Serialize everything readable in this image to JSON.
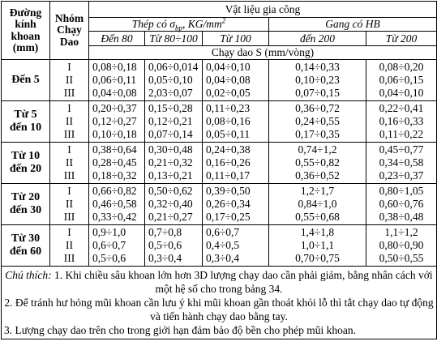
{
  "header": {
    "diameter": [
      "Đường",
      "kính",
      "khoan",
      "(mm)"
    ],
    "feed_group": [
      "Nhóm",
      "Chạy",
      "Dao"
    ],
    "material": "Vật liệu gia công",
    "steel": {
      "prefix": "Thép có σ",
      "sub": "bp",
      "unit": ", KG/mm",
      "sup": "2"
    },
    "cast_iron": "Gang có HB",
    "columns": [
      "Đến 80",
      "Từ 80÷100",
      "Từ 100",
      "đến 200",
      "Từ 200"
    ],
    "unit": "Chạy dao S (mm/vòng)"
  },
  "groups": [
    {
      "diameter": [
        "Đến 5"
      ],
      "feed_groups": [
        "I",
        "II",
        "III"
      ],
      "rows": [
        [
          "0,08÷0,18",
          "0,06÷0,014",
          "0,04÷0,10",
          "0,14÷0,33",
          "0,08÷0,20"
        ],
        [
          "0,06÷0,11",
          "0,05÷0,10",
          "0,04÷0,08",
          "0,10÷0,23",
          "0,06÷0,15"
        ],
        [
          "0,04÷0,08",
          "2,03÷0,07",
          "0,02÷0,05",
          "0,07÷0,15",
          "0,04÷0,10"
        ]
      ]
    },
    {
      "diameter": [
        "Từ 5",
        "đến 10"
      ],
      "feed_groups": [
        "I",
        "II",
        "III"
      ],
      "rows": [
        [
          "0,20÷0,37",
          "0,15÷0,28",
          "0,11÷0,23",
          "0,36÷0,72",
          "0,22÷0,41"
        ],
        [
          "0,12÷0,27",
          "0,12÷0,21",
          "0,08÷0,16",
          "0,24÷0,55",
          "0,16÷0,33"
        ],
        [
          "0,10÷0,18",
          "0,07÷0,14",
          "0,05÷0,11",
          "0,17÷0,35",
          "0,11÷0,22"
        ]
      ]
    },
    {
      "diameter": [
        "Từ 10",
        "đến 20"
      ],
      "feed_groups": [
        "I",
        "II",
        "III"
      ],
      "rows": [
        [
          "0,38÷0,64",
          "0,30÷0,48",
          "0,24÷0,38",
          "0,74÷1,2",
          "0,45÷0,77"
        ],
        [
          "0,28÷0,45",
          "0,21÷0,32",
          "0,16÷0,26",
          "0,55÷0,82",
          "0,34÷0,58"
        ],
        [
          "0,18÷0,32",
          "0,13÷0,21",
          "0,11÷0,17",
          "0,36÷0,52",
          "0,23÷0,37"
        ]
      ]
    },
    {
      "diameter": [
        "Từ 20",
        "đến 30"
      ],
      "feed_groups": [
        "I",
        "II",
        "III"
      ],
      "rows": [
        [
          "0,66÷0,82",
          "0,50÷0,62",
          "0,39÷0,50",
          "1,2÷1,7",
          "0,80÷1,05"
        ],
        [
          "0,46÷0,58",
          "0,32÷0,40",
          "0,26÷0,34",
          "0,84÷1,0",
          "0,60÷0,76"
        ],
        [
          "0,33÷0,42",
          "0,21÷0,27",
          "0,17÷0,25",
          "0,55÷0,68",
          "0,38÷0,48"
        ]
      ]
    },
    {
      "diameter": [
        "Từ 30",
        "đến 60"
      ],
      "feed_groups": [
        "I",
        "II",
        "III"
      ],
      "rows": [
        [
          "0,9÷1,0",
          "0,7÷0,8",
          "0,6÷0,7",
          "1,4÷1,8",
          "1,1÷1,2"
        ],
        [
          "0,6÷0,7",
          "0,5÷0,6",
          "0,4÷0,5",
          "1,0÷1,1",
          "0,80÷0,90"
        ],
        [
          "0,5÷0,6",
          "0,3÷0,4",
          "0,3÷0,4",
          "0,70÷0,75",
          "0,50÷0,55"
        ]
      ]
    }
  ],
  "notes": {
    "label": "Chú thích:",
    "items": [
      "1. Khi chiều sâu khoan lớn hơn 3D lượng chạy dao cần phải giảm, bằng nhân cách với một hệ số cho trong bảng 34.",
      "2. Để tránh hư hỏng mũi khoan cần lưu ý khi mũi khoan gần thoát khỏi lỗ thì tắt chạy dao tự động và tiến hành chạy dao bằng tay.",
      "3. Lượng chạy dao trên cho trong giới hạn đảm bảo độ bền cho phép mũi khoan."
    ]
  }
}
